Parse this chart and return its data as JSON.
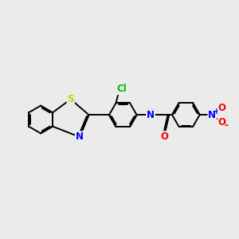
{
  "background_color": "#ebebeb",
  "atom_colors": {
    "S": "#cccc00",
    "N": "#0000ff",
    "O": "#ff0000",
    "Cl": "#00bb00",
    "C": "#000000",
    "H": "#4da6a6"
  },
  "bond_color": "#000000",
  "bond_lw": 1.4,
  "figsize": [
    3.0,
    3.0
  ],
  "dpi": 100
}
